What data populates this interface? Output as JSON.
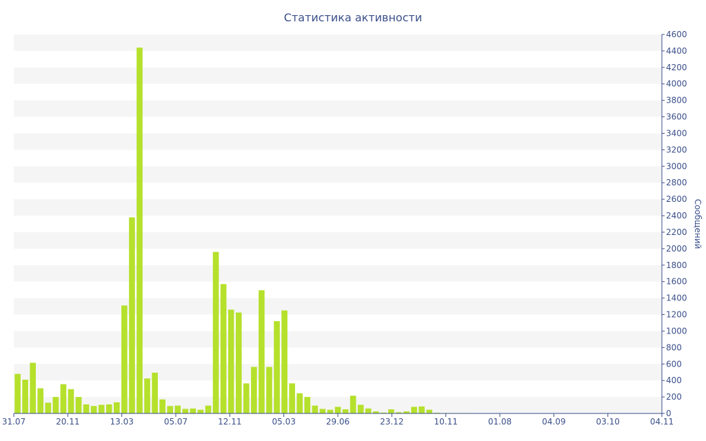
{
  "chart_data": {
    "type": "bar",
    "title": "Статистика активности",
    "xlabel": "",
    "ylabel": "Сообщений",
    "ylim": [
      0,
      4600
    ],
    "yticks": [
      0,
      200,
      400,
      600,
      800,
      1000,
      1200,
      1400,
      1600,
      1800,
      2000,
      2200,
      2400,
      2600,
      2800,
      3000,
      3200,
      3400,
      3600,
      3800,
      4000,
      4200,
      4400,
      4600
    ],
    "x_tick_labels": [
      "31.07",
      "20.11",
      "13.03",
      "05.07",
      "12.11",
      "05.03",
      "29.06",
      "23.12",
      "10.11",
      "01.08",
      "04.09",
      "03.10",
      "04.11"
    ],
    "bar_color": "#b5e02c",
    "grid": "alternating horizontal bands",
    "y_axis_side": "right",
    "values": [
      480,
      410,
      615,
      305,
      130,
      200,
      355,
      295,
      200,
      110,
      90,
      105,
      110,
      135,
      1310,
      2380,
      4440,
      425,
      495,
      170,
      90,
      95,
      55,
      60,
      45,
      95,
      1960,
      1570,
      1260,
      1225,
      365,
      565,
      1495,
      565,
      1120,
      1250,
      365,
      245,
      200,
      95,
      55,
      45,
      80,
      50,
      215,
      105,
      60,
      25,
      10,
      50,
      15,
      25,
      80,
      85,
      45,
      8,
      5,
      5,
      5,
      5,
      3,
      3,
      3,
      3,
      3,
      3,
      3,
      3,
      3,
      3,
      3,
      3,
      3,
      3,
      3,
      3,
      3,
      3,
      3,
      3,
      3,
      3,
      3,
      3,
      3
    ]
  }
}
